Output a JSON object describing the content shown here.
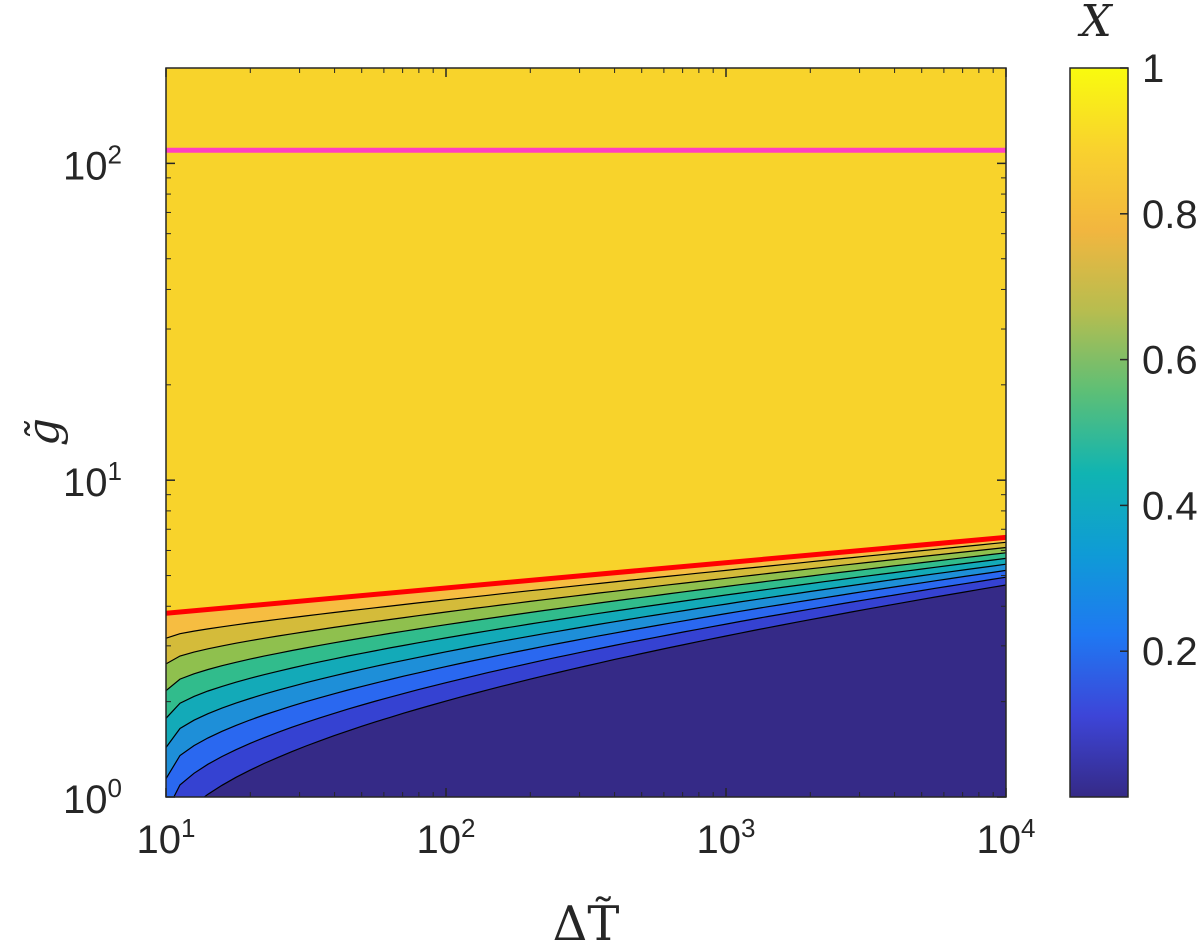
{
  "chart_data": {
    "type": "contour",
    "title": "",
    "xlabel": "ΔT̃",
    "ylabel": "g̃",
    "xscale": "log",
    "yscale": "log",
    "xlim": [
      10,
      10000
    ],
    "ylim": [
      1,
      200
    ],
    "x_ticks": [
      {
        "value": 10,
        "base": "10",
        "exp": "1"
      },
      {
        "value": 100,
        "base": "10",
        "exp": "2"
      },
      {
        "value": 1000,
        "base": "10",
        "exp": "3"
      },
      {
        "value": 10000,
        "base": "10",
        "exp": "4"
      }
    ],
    "y_ticks": [
      {
        "value": 1,
        "base": "10",
        "exp": "0"
      },
      {
        "value": 10,
        "base": "10",
        "exp": "1"
      },
      {
        "value": 100,
        "base": "10",
        "exp": "2"
      }
    ],
    "colorbar": {
      "label": "X",
      "range": [
        0,
        1
      ],
      "colormap": "parula",
      "ticks": [
        {
          "value": 0.2,
          "label": "0.2"
        },
        {
          "value": 0.4,
          "label": "0.4"
        },
        {
          "value": 0.6,
          "label": "0.6"
        },
        {
          "value": 0.8,
          "label": "0.8"
        },
        {
          "value": 1,
          "label": "1"
        }
      ]
    },
    "contour_levels": [
      0.1,
      0.2,
      0.3,
      0.4,
      0.5,
      0.6,
      0.7,
      0.8,
      0.9
    ],
    "level_colors": [
      "#352a87",
      "#3542d2",
      "#2a68f0",
      "#1e8fd8",
      "#13aab8",
      "#31bc8c",
      "#8fc04e",
      "#d4bb3a",
      "#f6bd41",
      "#f8d32b"
    ],
    "lines": [
      {
        "name": "red boundary",
        "color": "#ff0000",
        "x": [
          10,
          10000
        ],
        "y": [
          3.8,
          6.6
        ]
      },
      {
        "name": "magenta line",
        "color": "#ff40c0",
        "x": [
          10,
          10000
        ],
        "y": [
          110,
          110
        ]
      }
    ]
  }
}
